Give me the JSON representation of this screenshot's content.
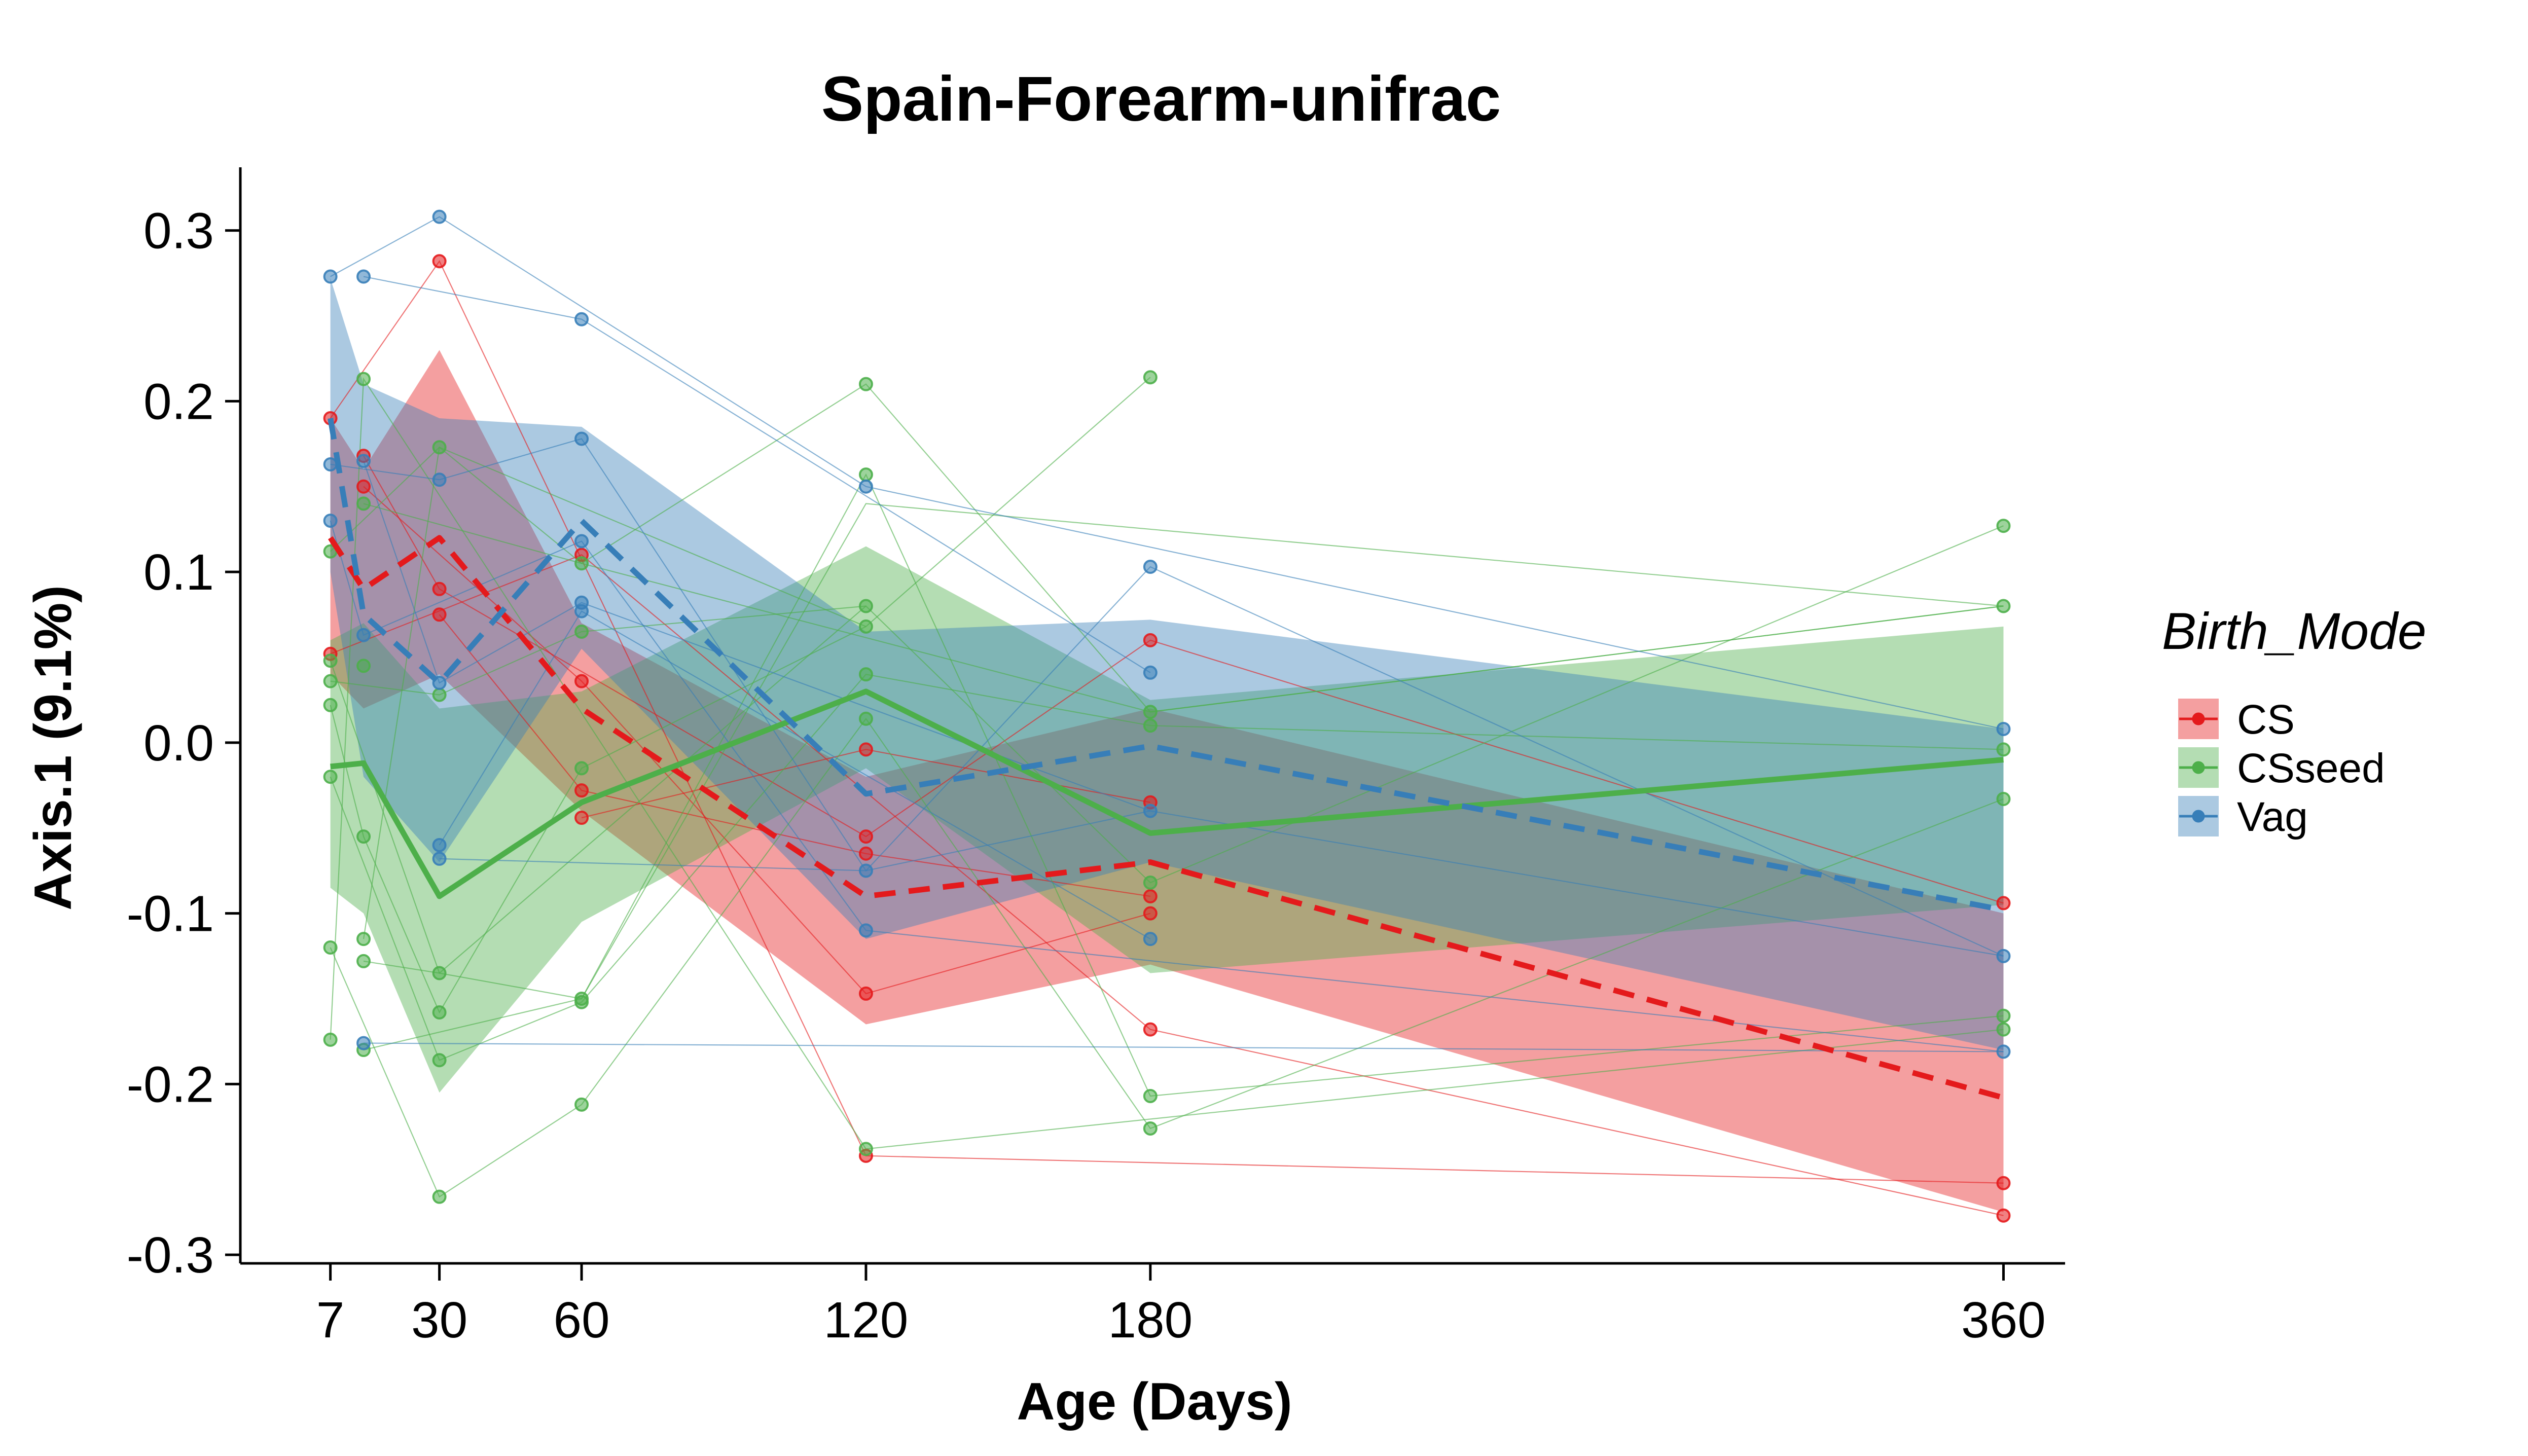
{
  "chart_data": {
    "type": "line",
    "title": "Spain-Forearm-unifrac",
    "xlabel": "Age (Days)",
    "ylabel": "Axis.1 (9.1%)",
    "xlim": [
      -12,
      373
    ],
    "ylim": [
      -0.305,
      0.337
    ],
    "x_ticks": [
      7,
      30,
      60,
      120,
      180,
      360
    ],
    "x_tick_labels": [
      "7",
      "30",
      "60",
      "120",
      "180",
      "360"
    ],
    "y_ticks": [
      0.3,
      0.2,
      0.1,
      0.0,
      -0.1,
      -0.2,
      -0.3
    ],
    "y_tick_labels": [
      "0.3",
      "0.2",
      "0.1",
      "0.0",
      "-0.1",
      "-0.2",
      "-0.3"
    ],
    "grid": false,
    "legend": {
      "title": "Birth_Mode",
      "position": "right",
      "entries": [
        "CS",
        "CSseed",
        "Vag"
      ]
    },
    "colors": {
      "CS": "#E41A1C",
      "CSseed": "#4DAF4A",
      "Vag": "#377EB8"
    },
    "series": [
      {
        "name": "CS",
        "color": "#E41A1C",
        "line_style": "dashed",
        "mean": {
          "x": [
            7,
            14,
            30,
            60,
            120,
            180,
            360
          ],
          "y": [
            0.12,
            0.09,
            0.12,
            0.02,
            -0.09,
            -0.07,
            -0.208
          ]
        },
        "band": {
          "x": [
            7,
            14,
            30,
            60,
            120,
            180,
            360
          ],
          "lower": [
            0.04,
            0.02,
            0.04,
            -0.04,
            -0.165,
            -0.13,
            -0.275
          ],
          "upper": [
            0.19,
            0.16,
            0.23,
            0.07,
            -0.02,
            0.02,
            -0.1
          ]
        },
        "points": [
          {
            "x": 7,
            "y": 0.19
          },
          {
            "x": 7,
            "y": 0.052
          },
          {
            "x": 14,
            "y": 0.168
          },
          {
            "x": 14,
            "y": 0.15
          },
          {
            "x": 30,
            "y": 0.282
          },
          {
            "x": 30,
            "y": 0.09
          },
          {
            "x": 30,
            "y": 0.075
          },
          {
            "x": 60,
            "y": 0.11
          },
          {
            "x": 60,
            "y": 0.036
          },
          {
            "x": 60,
            "y": -0.028
          },
          {
            "x": 60,
            "y": -0.044
          },
          {
            "x": 120,
            "y": -0.004
          },
          {
            "x": 120,
            "y": -0.055
          },
          {
            "x": 120,
            "y": -0.065
          },
          {
            "x": 120,
            "y": -0.147
          },
          {
            "x": 120,
            "y": -0.242
          },
          {
            "x": 180,
            "y": 0.06
          },
          {
            "x": 180,
            "y": -0.035
          },
          {
            "x": 180,
            "y": -0.09
          },
          {
            "x": 180,
            "y": -0.1
          },
          {
            "x": 180,
            "y": -0.168
          },
          {
            "x": 360,
            "y": -0.094
          },
          {
            "x": 360,
            "y": -0.258
          },
          {
            "x": 360,
            "y": -0.277
          }
        ]
      },
      {
        "name": "CSseed",
        "color": "#4DAF4A",
        "line_style": "solid",
        "mean": {
          "x": [
            7,
            14,
            30,
            60,
            120,
            180,
            360
          ],
          "y": [
            -0.014,
            -0.012,
            -0.09,
            -0.035,
            0.03,
            -0.053,
            -0.01
          ]
        },
        "band": {
          "x": [
            7,
            14,
            30,
            60,
            120,
            180,
            360
          ],
          "lower": [
            -0.085,
            -0.1,
            -0.205,
            -0.105,
            -0.015,
            -0.135,
            -0.095
          ],
          "upper": [
            0.06,
            0.07,
            0.02,
            0.03,
            0.115,
            0.025,
            0.068
          ]
        },
        "points": [
          {
            "x": 7,
            "y": 0.112
          },
          {
            "x": 7,
            "y": 0.048
          },
          {
            "x": 7,
            "y": 0.036
          },
          {
            "x": 7,
            "y": 0.022
          },
          {
            "x": 7,
            "y": -0.02
          },
          {
            "x": 7,
            "y": -0.12
          },
          {
            "x": 7,
            "y": -0.174
          },
          {
            "x": 14,
            "y": 0.213
          },
          {
            "x": 14,
            "y": 0.14
          },
          {
            "x": 14,
            "y": 0.045
          },
          {
            "x": 14,
            "y": -0.055
          },
          {
            "x": 14,
            "y": -0.115
          },
          {
            "x": 14,
            "y": -0.128
          },
          {
            "x": 14,
            "y": -0.18
          },
          {
            "x": 30,
            "y": 0.173
          },
          {
            "x": 30,
            "y": 0.028
          },
          {
            "x": 30,
            "y": -0.135
          },
          {
            "x": 30,
            "y": -0.158
          },
          {
            "x": 30,
            "y": -0.186
          },
          {
            "x": 30,
            "y": -0.266
          },
          {
            "x": 60,
            "y": 0.105
          },
          {
            "x": 60,
            "y": 0.065
          },
          {
            "x": 60,
            "y": -0.015
          },
          {
            "x": 60,
            "y": -0.15
          },
          {
            "x": 60,
            "y": -0.152
          },
          {
            "x": 60,
            "y": -0.212
          },
          {
            "x": 120,
            "y": 0.21
          },
          {
            "x": 120,
            "y": 0.157
          },
          {
            "x": 120,
            "y": 0.08
          },
          {
            "x": 120,
            "y": 0.068
          },
          {
            "x": 120,
            "y": 0.04
          },
          {
            "x": 120,
            "y": 0.014
          },
          {
            "x": 120,
            "y": -0.238
          },
          {
            "x": 180,
            "y": 0.214
          },
          {
            "x": 180,
            "y": 0.018
          },
          {
            "x": 180,
            "y": 0.01
          },
          {
            "x": 180,
            "y": -0.082
          },
          {
            "x": 180,
            "y": -0.207
          },
          {
            "x": 180,
            "y": -0.226
          },
          {
            "x": 360,
            "y": 0.127
          },
          {
            "x": 360,
            "y": 0.08
          },
          {
            "x": 360,
            "y": -0.004
          },
          {
            "x": 360,
            "y": -0.033
          },
          {
            "x": 360,
            "y": -0.16
          },
          {
            "x": 360,
            "y": -0.168
          }
        ]
      },
      {
        "name": "Vag",
        "color": "#377EB8",
        "line_style": "dashed",
        "mean": {
          "x": [
            7,
            14,
            30,
            60,
            120,
            180,
            360
          ],
          "y": [
            0.19,
            0.075,
            0.035,
            0.13,
            -0.03,
            -0.002,
            -0.098
          ]
        },
        "band": {
          "x": [
            7,
            14,
            30,
            60,
            120,
            180,
            360
          ],
          "lower": [
            0.1,
            -0.02,
            -0.07,
            0.055,
            -0.115,
            -0.07,
            -0.18
          ],
          "upper": [
            0.272,
            0.21,
            0.19,
            0.185,
            0.065,
            0.072,
            0.008
          ]
        },
        "points": [
          {
            "x": 7,
            "y": 0.273
          },
          {
            "x": 7,
            "y": 0.163
          },
          {
            "x": 7,
            "y": 0.13
          },
          {
            "x": 14,
            "y": 0.273
          },
          {
            "x": 14,
            "y": 0.165
          },
          {
            "x": 14,
            "y": 0.063
          },
          {
            "x": 14,
            "y": -0.176
          },
          {
            "x": 30,
            "y": 0.308
          },
          {
            "x": 30,
            "y": 0.154
          },
          {
            "x": 30,
            "y": 0.035
          },
          {
            "x": 30,
            "y": -0.06
          },
          {
            "x": 30,
            "y": -0.068
          },
          {
            "x": 60,
            "y": 0.248
          },
          {
            "x": 60,
            "y": 0.178
          },
          {
            "x": 60,
            "y": 0.118
          },
          {
            "x": 60,
            "y": 0.082
          },
          {
            "x": 60,
            "y": 0.077
          },
          {
            "x": 120,
            "y": 0.15
          },
          {
            "x": 120,
            "y": -0.075
          },
          {
            "x": 120,
            "y": -0.11
          },
          {
            "x": 180,
            "y": 0.103
          },
          {
            "x": 180,
            "y": 0.041
          },
          {
            "x": 180,
            "y": -0.04
          },
          {
            "x": 180,
            "y": -0.115
          },
          {
            "x": 360,
            "y": 0.008
          },
          {
            "x": 360,
            "y": -0.125
          },
          {
            "x": 360,
            "y": -0.181
          }
        ]
      }
    ],
    "subject_trajectories": [
      {
        "group": "CS",
        "x": [
          7,
          30,
          120,
          360
        ],
        "y": [
          0.19,
          0.282,
          -0.242,
          -0.258
        ]
      },
      {
        "group": "CS",
        "x": [
          7,
          60,
          180,
          360
        ],
        "y": [
          0.052,
          0.11,
          -0.168,
          -0.277
        ]
      },
      {
        "group": "CS",
        "x": [
          14,
          30,
          120,
          180,
          360
        ],
        "y": [
          0.168,
          0.09,
          -0.055,
          0.06,
          -0.094
        ]
      },
      {
        "group": "CS",
        "x": [
          14,
          60,
          120,
          180
        ],
        "y": [
          0.15,
          0.036,
          -0.147,
          -0.1
        ]
      },
      {
        "group": "CS",
        "x": [
          30,
          60,
          120,
          180
        ],
        "y": [
          0.075,
          -0.028,
          -0.065,
          -0.09
        ]
      },
      {
        "group": "CS",
        "x": [
          60,
          120,
          180
        ],
        "y": [
          -0.044,
          -0.004,
          -0.035
        ]
      },
      {
        "group": "CSseed",
        "x": [
          7,
          30,
          60,
          120,
          180,
          360
        ],
        "y": [
          0.112,
          0.173,
          0.105,
          0.21,
          0.018,
          0.08
        ]
      },
      {
        "group": "CSseed",
        "x": [
          7,
          30,
          60,
          120,
          180,
          360
        ],
        "y": [
          0.048,
          -0.135,
          -0.15,
          0.157,
          -0.207,
          -0.16
        ]
      },
      {
        "group": "CSseed",
        "x": [
          7,
          30,
          60,
          120,
          180,
          360
        ],
        "y": [
          0.036,
          0.028,
          0.065,
          0.08,
          -0.082,
          0.127
        ]
      },
      {
        "group": "CSseed",
        "x": [
          7,
          14,
          30,
          60,
          120,
          180
        ],
        "y": [
          0.022,
          -0.055,
          -0.158,
          -0.015,
          0.068,
          0.214
        ]
      },
      {
        "group": "CSseed",
        "x": [
          7,
          30,
          60,
          120,
          180,
          360
        ],
        "y": [
          -0.02,
          -0.186,
          -0.152,
          0.04,
          0.01,
          -0.004
        ]
      },
      {
        "group": "CSseed",
        "x": [
          7,
          30,
          60,
          120,
          180,
          360
        ],
        "y": [
          -0.12,
          -0.266,
          -0.212,
          0.014,
          -0.226,
          -0.033
        ]
      },
      {
        "group": "CSseed",
        "x": [
          7,
          14,
          120,
          360
        ],
        "y": [
          -0.174,
          0.213,
          -0.238,
          -0.168
        ]
      },
      {
        "group": "CSseed",
        "x": [
          14,
          60,
          180,
          360
        ],
        "y": [
          0.14,
          0.105,
          0.018,
          0.08
        ]
      },
      {
        "group": "CSseed",
        "x": [
          14,
          30,
          120
        ],
        "y": [
          -0.115,
          0.173,
          0.068
        ]
      },
      {
        "group": "CSseed",
        "x": [
          14,
          30,
          120
        ],
        "y": [
          -0.128,
          -0.135,
          0.08
        ]
      },
      {
        "group": "CSseed",
        "x": [
          14,
          60,
          120,
          360
        ],
        "y": [
          -0.18,
          -0.15,
          0.14,
          0.08
        ]
      },
      {
        "group": "Vag",
        "x": [
          7,
          30,
          120,
          360
        ],
        "y": [
          0.273,
          0.308,
          0.15,
          0.008
        ]
      },
      {
        "group": "Vag",
        "x": [
          7,
          30,
          60,
          120,
          180,
          360
        ],
        "y": [
          0.163,
          0.154,
          0.178,
          -0.075,
          0.103,
          -0.125
        ]
      },
      {
        "group": "Vag",
        "x": [
          7,
          14,
          60,
          120,
          360
        ],
        "y": [
          0.13,
          0.063,
          0.118,
          -0.11,
          -0.181
        ]
      },
      {
        "group": "Vag",
        "x": [
          14,
          60,
          180
        ],
        "y": [
          0.273,
          0.248,
          0.041
        ]
      },
      {
        "group": "Vag",
        "x": [
          14,
          30,
          60,
          180,
          360
        ],
        "y": [
          0.165,
          0.035,
          0.082,
          -0.04,
          -0.125
        ]
      },
      {
        "group": "Vag",
        "x": [
          14,
          360
        ],
        "y": [
          -0.176,
          -0.181
        ]
      },
      {
        "group": "Vag",
        "x": [
          30,
          60,
          180
        ],
        "y": [
          -0.06,
          0.077,
          -0.115
        ]
      },
      {
        "group": "Vag",
        "x": [
          30,
          120,
          180
        ],
        "y": [
          -0.068,
          -0.075,
          -0.04
        ]
      }
    ]
  }
}
